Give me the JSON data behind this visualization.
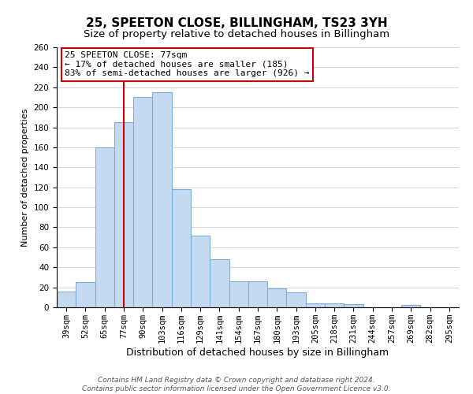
{
  "title": "25, SPEETON CLOSE, BILLINGHAM, TS23 3YH",
  "subtitle": "Size of property relative to detached houses in Billingham",
  "xlabel": "Distribution of detached houses by size in Billingham",
  "ylabel": "Number of detached properties",
  "categories": [
    "39sqm",
    "52sqm",
    "65sqm",
    "77sqm",
    "90sqm",
    "103sqm",
    "116sqm",
    "129sqm",
    "141sqm",
    "154sqm",
    "167sqm",
    "180sqm",
    "193sqm",
    "205sqm",
    "218sqm",
    "231sqm",
    "244sqm",
    "257sqm",
    "269sqm",
    "282sqm",
    "295sqm"
  ],
  "values": [
    16,
    25,
    160,
    185,
    210,
    215,
    118,
    72,
    48,
    26,
    26,
    19,
    15,
    4,
    4,
    3,
    0,
    0,
    2,
    0,
    0
  ],
  "bar_color": "#c5d9f1",
  "bar_edge_color": "#7ab0d4",
  "vline_x": 3,
  "vline_color": "#cc0000",
  "ylim": [
    0,
    260
  ],
  "yticks": [
    0,
    20,
    40,
    60,
    80,
    100,
    120,
    140,
    160,
    180,
    200,
    220,
    240,
    260
  ],
  "annotation_title": "25 SPEETON CLOSE: 77sqm",
  "annotation_line1": "← 17% of detached houses are smaller (185)",
  "annotation_line2": "83% of semi-detached houses are larger (926) →",
  "annotation_box_color": "#ffffff",
  "annotation_box_edge": "#cc0000",
  "footer_line1": "Contains HM Land Registry data © Crown copyright and database right 2024.",
  "footer_line2": "Contains public sector information licensed under the Open Government Licence v3.0.",
  "title_fontsize": 11,
  "subtitle_fontsize": 9.5,
  "xlabel_fontsize": 9,
  "ylabel_fontsize": 8,
  "tick_fontsize": 7.5,
  "footer_fontsize": 6.5,
  "annotation_fontsize": 8
}
